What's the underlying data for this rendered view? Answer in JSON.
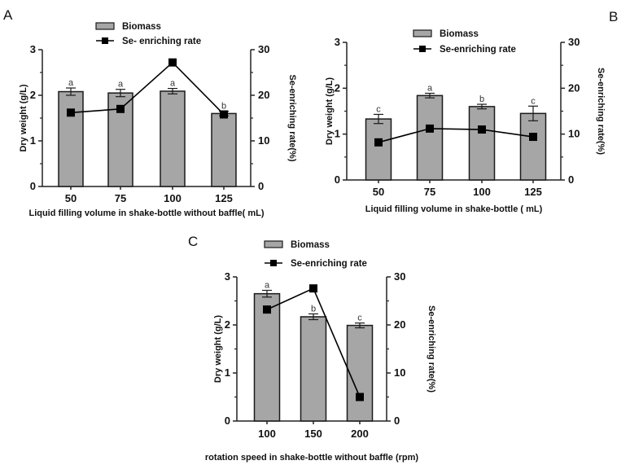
{
  "chart_data": [
    {
      "panel_label": "A",
      "type": "bar+line",
      "categories": [
        "50",
        "75",
        "100",
        "125"
      ],
      "xlabel": "Liquid filling volume in shake-bottle without baffle( mL)",
      "ylabel": "Dry weight (g/L)",
      "y2label": "Se-enriching rate(%)",
      "ylim": [
        0,
        3
      ],
      "yticks": [
        "0",
        "1",
        "2",
        "3"
      ],
      "y2lim": [
        0,
        30
      ],
      "y2ticks": [
        "0",
        "10",
        "20",
        "30"
      ],
      "legend_placement": "top",
      "series": [
        {
          "name": "Biomass",
          "type": "bar",
          "axis": "left",
          "color": "#a6a6a6",
          "values": [
            2.08,
            2.05,
            2.09,
            1.6
          ],
          "errors": [
            0.08,
            0.08,
            0.06,
            0.05
          ],
          "significance": [
            "a",
            "a",
            "a",
            "b"
          ]
        },
        {
          "name": "Se- enriching rate",
          "type": "line",
          "axis": "right",
          "color": "#000000",
          "values": [
            16.2,
            17.0,
            27.2,
            15.8
          ]
        }
      ]
    },
    {
      "panel_label": "B",
      "type": "bar+line",
      "categories": [
        "50",
        "75",
        "100",
        "125"
      ],
      "xlabel": "Liquid filling volume in shake-bottle ( mL)",
      "ylabel": "Dry weight (g/L)",
      "y2label": "Se-enriching rate(%)",
      "ylim": [
        0,
        3
      ],
      "yticks": [
        "0",
        "1",
        "2",
        "3"
      ],
      "y2lim": [
        0,
        30
      ],
      "y2ticks": [
        "0",
        "10",
        "20",
        "30"
      ],
      "legend_placement": "top",
      "series": [
        {
          "name": "Biomass",
          "type": "bar",
          "axis": "left",
          "color": "#a6a6a6",
          "values": [
            1.33,
            1.84,
            1.6,
            1.45
          ],
          "errors": [
            0.1,
            0.05,
            0.05,
            0.16
          ],
          "significance": [
            "c",
            "a",
            "b",
            "c"
          ]
        },
        {
          "name": "Se-enriching rate",
          "type": "line",
          "axis": "right",
          "color": "#000000",
          "values": [
            8.2,
            11.2,
            11.0,
            9.4
          ]
        }
      ]
    },
    {
      "panel_label": "C",
      "type": "bar+line",
      "categories": [
        "100",
        "150",
        "200"
      ],
      "xlabel": "rotation speed in shake-bottle without baffle (rpm)",
      "ylabel": "Dry weight (g/L)",
      "y2label": "Se-enriching rate(%)",
      "ylim": [
        0,
        3
      ],
      "yticks": [
        "0",
        "1",
        "2",
        "3"
      ],
      "y2lim": [
        0,
        30
      ],
      "y2ticks": [
        "0",
        "10",
        "20",
        "30"
      ],
      "legend_placement": "top",
      "series": [
        {
          "name": "Biomass",
          "type": "bar",
          "axis": "left",
          "color": "#a6a6a6",
          "values": [
            2.65,
            2.17,
            1.99
          ],
          "errors": [
            0.07,
            0.06,
            0.05
          ],
          "significance": [
            "a",
            "b",
            "c"
          ]
        },
        {
          "name": "Se-enriching rate",
          "type": "line",
          "axis": "right",
          "color": "#000000",
          "values": [
            23.2,
            27.6,
            5.0
          ]
        }
      ]
    }
  ]
}
